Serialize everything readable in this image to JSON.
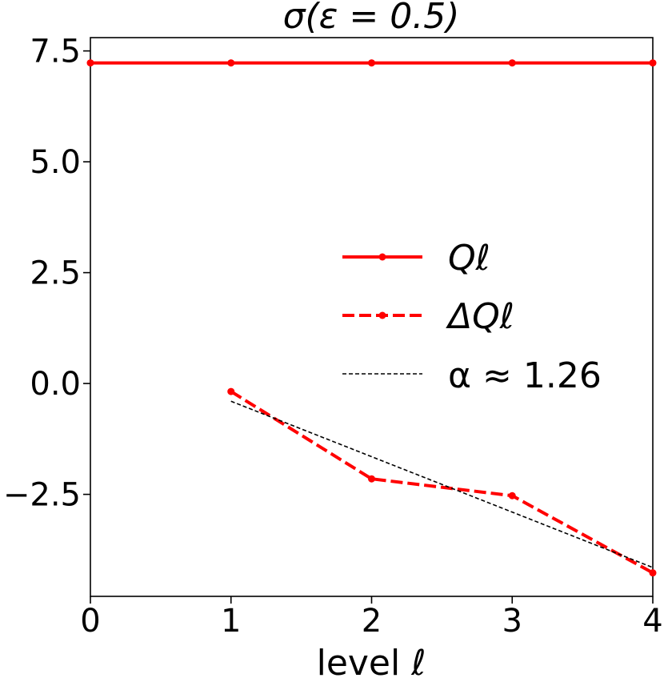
{
  "chart_data": {
    "type": "line",
    "title": "σ(ε = 0.5)",
    "xlabel": "level ℓ",
    "ylabel": "",
    "xlim": [
      0,
      4
    ],
    "ylim": [
      -4.8,
      7.8
    ],
    "xticks": [
      0,
      1,
      2,
      3,
      4
    ],
    "xtick_labels": [
      "0",
      "1",
      "2",
      "3",
      "4"
    ],
    "yticks": [
      7.5,
      5.0,
      2.5,
      0.0,
      -2.5
    ],
    "ytick_labels": [
      "7.5",
      "5.0",
      "2.5",
      "0.0",
      "−2.5"
    ],
    "grid": false,
    "legend_position": "center-right",
    "series": [
      {
        "name": "Qℓ",
        "style": "solid",
        "marker": "circle",
        "color": "#ff0000",
        "x": [
          0,
          1,
          2,
          3,
          4
        ],
        "y": [
          7.23,
          7.23,
          7.23,
          7.23,
          7.23
        ]
      },
      {
        "name": "ΔQℓ",
        "style": "dashed",
        "marker": "circle",
        "color": "#ff0000",
        "x": [
          1,
          2,
          3,
          4
        ],
        "y": [
          -0.18,
          -2.15,
          -2.53,
          -4.27
        ]
      },
      {
        "name": "α ≈ 1.26",
        "style": "dotted",
        "marker": "none",
        "color": "#000000",
        "x": [
          1,
          4
        ],
        "y": [
          -0.4,
          -4.15
        ]
      }
    ]
  }
}
